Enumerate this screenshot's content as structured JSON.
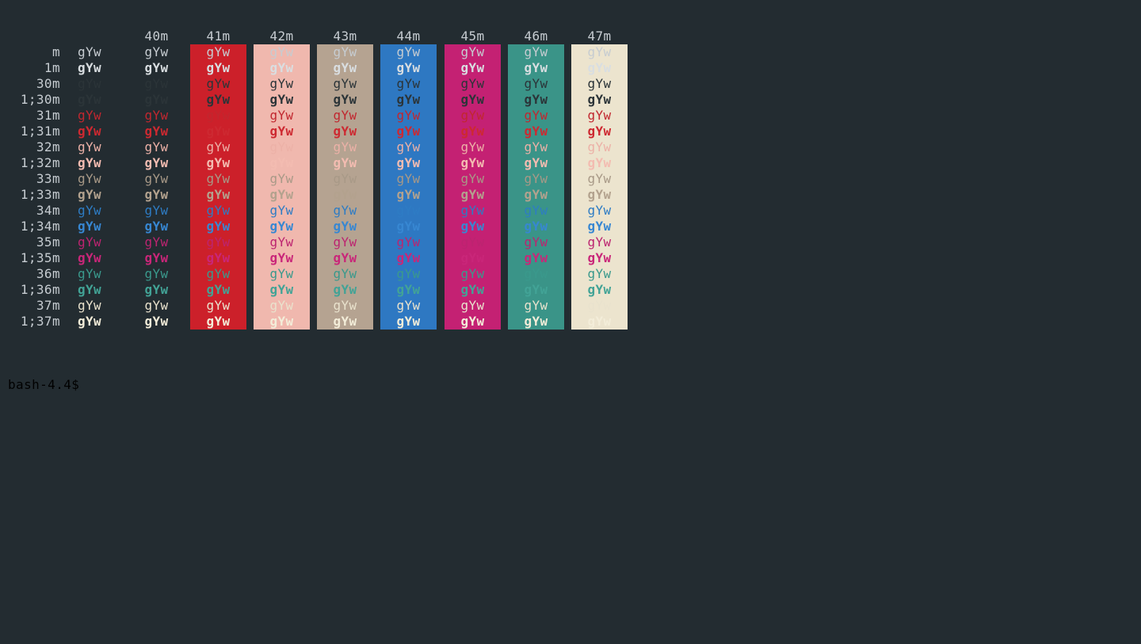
{
  "terminal": {
    "bg": "#232c31",
    "default_fg": "#c6ccd1",
    "prompt": "bash-4.4$",
    "cell_text": "gYw"
  },
  "header": {
    "labels": [
      "40m",
      "41m",
      "42m",
      "43m",
      "44m",
      "45m",
      "46m",
      "47m"
    ]
  },
  "backgrounds": {
    "40m": "#232c31",
    "41m": "#cc202a",
    "42m": "#f0b8ae",
    "43m": "#b5a391",
    "44m": "#2e78c2",
    "45m": "#c42173",
    "46m": "#3a9488",
    "47m": "#ece4ce"
  },
  "rows": [
    {
      "label": "m",
      "fg": "#c6ccd1",
      "bold": false
    },
    {
      "label": "1m",
      "fg": "#d9dee1",
      "bold": true
    },
    {
      "label": "30m",
      "fg": "#2b3438",
      "bold": false
    },
    {
      "label": "1;30m",
      "fg": "#2b3438",
      "bold": true
    },
    {
      "label": "31m",
      "fg": "#c1272f",
      "bold": false
    },
    {
      "label": "1;31m",
      "fg": "#cd2931",
      "bold": true
    },
    {
      "label": "32m",
      "fg": "#ecb1a7",
      "bold": false
    },
    {
      "label": "1;32m",
      "fg": "#f3bcb1",
      "bold": true
    },
    {
      "label": "33m",
      "fg": "#a89987",
      "bold": false
    },
    {
      "label": "1;33m",
      "fg": "#b3a28e",
      "bold": true
    },
    {
      "label": "34m",
      "fg": "#2e7cc4",
      "bold": false
    },
    {
      "label": "1;34m",
      "fg": "#3787d2",
      "bold": true
    },
    {
      "label": "35m",
      "fg": "#bc2470",
      "bold": false
    },
    {
      "label": "1;35m",
      "fg": "#c92679",
      "bold": true
    },
    {
      "label": "36m",
      "fg": "#3a998c",
      "bold": false
    },
    {
      "label": "1;36m",
      "fg": "#42a396",
      "bold": true
    },
    {
      "label": "37m",
      "fg": "#e9e2cd",
      "bold": false
    },
    {
      "label": "1;37m",
      "fg": "#f3edd9",
      "bold": true
    }
  ]
}
